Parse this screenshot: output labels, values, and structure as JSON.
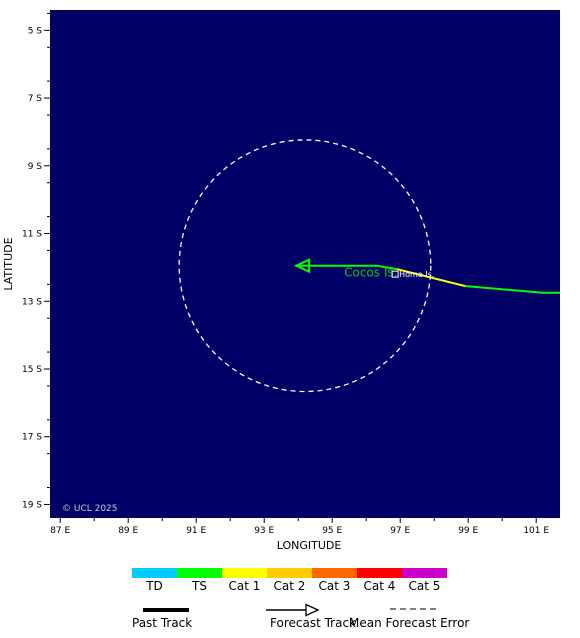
{
  "map": {
    "background_color": "#000066",
    "watermark": "© UCL 2025",
    "x_axis_title": "LONGITUDE",
    "y_axis_title": "LATITUDE",
    "lon_range": [
      86.7,
      101.7
    ],
    "lat_range": [
      -19.4,
      -4.4
    ],
    "lon_ticks": [
      {
        "value": 87,
        "label": "87 E"
      },
      {
        "value": 89,
        "label": "89 E"
      },
      {
        "value": 91,
        "label": "91 E"
      },
      {
        "value": 93,
        "label": "93 E"
      },
      {
        "value": 95,
        "label": "95 E"
      },
      {
        "value": 97,
        "label": "97 E"
      },
      {
        "value": 99,
        "label": "99 E"
      },
      {
        "value": 101,
        "label": "101 E"
      }
    ],
    "lat_ticks": [
      {
        "value": -5,
        "label": "5 S"
      },
      {
        "value": -7,
        "label": "7 S"
      },
      {
        "value": -9,
        "label": "9 S"
      },
      {
        "value": -11,
        "label": "11 S"
      },
      {
        "value": -13,
        "label": "13 S"
      },
      {
        "value": -15,
        "label": "15 S"
      },
      {
        "value": -17,
        "label": "17 S"
      },
      {
        "value": -19,
        "label": "19 S"
      }
    ],
    "past_track": {
      "color": "#ffff00",
      "points": [
        [
          96.9,
          -12.05
        ],
        [
          98.9,
          -12.55
        ]
      ]
    },
    "past_track_tail": {
      "color": "#00ff00",
      "points": [
        [
          98.9,
          -12.55
        ],
        [
          101.2,
          -12.75
        ],
        [
          101.7,
          -12.75
        ]
      ]
    },
    "forecast_track": {
      "color": "#00ff00",
      "points": [
        [
          96.9,
          -12.05
        ],
        [
          96.3,
          -11.95
        ],
        [
          94.0,
          -11.95
        ]
      ]
    },
    "error_circle": {
      "color": "#ffffff",
      "center": [
        94.2,
        -11.95
      ],
      "radius_deg": 3.7
    },
    "places": [
      {
        "name": "Cocos Is.",
        "lon": 97.15,
        "lat": -12.15,
        "color": "#00cc00"
      },
      {
        "name": "Home Is.",
        "lon": 96.85,
        "lat": -12.2,
        "color": "#ffffff"
      }
    ]
  },
  "legend": {
    "categories": [
      {
        "label": "TD",
        "color": "#00ccff"
      },
      {
        "label": "TS",
        "color": "#00ff00"
      },
      {
        "label": "Cat 1",
        "color": "#ffff00"
      },
      {
        "label": "Cat 2",
        "color": "#ffcc00"
      },
      {
        "label": "Cat 3",
        "color": "#ff6600"
      },
      {
        "label": "Cat 4",
        "color": "#ff0000"
      },
      {
        "label": "Cat 5",
        "color": "#cc00cc"
      }
    ],
    "past_track_label": "Past Track",
    "forecast_track_label": "Forecast Track",
    "mean_error_label": "Mean Forecast Error"
  }
}
